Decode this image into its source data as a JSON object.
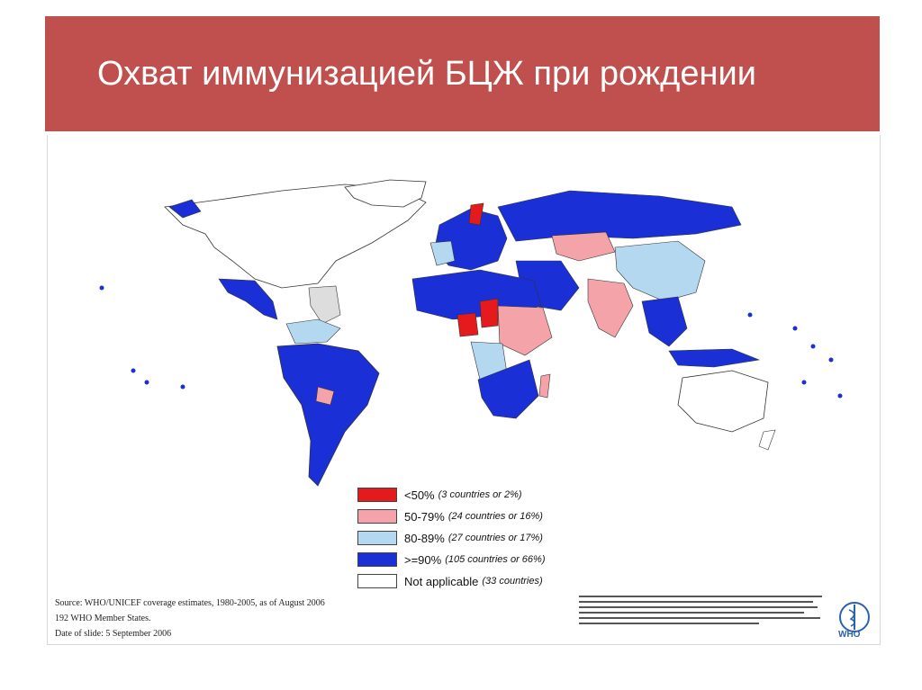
{
  "slide": {
    "title": "Охват иммунизацией БЦЖ при рождении"
  },
  "colors": {
    "title_bar": "#c0504d",
    "lt50": "#e41a1c",
    "50_79": "#f4a3a8",
    "80_89": "#b3d8f0",
    "ge90": "#1a2fd6",
    "na": "#ffffff"
  },
  "legend": [
    {
      "range": "<50%",
      "count": "(3 countries or 2%)",
      "color_key": "lt50"
    },
    {
      "range": "50-79%",
      "count": "(24 countries or 16%)",
      "color_key": "50_79"
    },
    {
      "range": "80-89%",
      "count": "(27 countries or 17%)",
      "color_key": "80_89"
    },
    {
      "range": ">=90%",
      "count": "(105 countries or 66%)",
      "color_key": "ge90"
    },
    {
      "range": "Not applicable",
      "count": "(33 countries)",
      "color_key": "na"
    }
  ],
  "source": {
    "line1": "Source: WHO/UNICEF coverage estimates, 1980-2005, as of August 2006",
    "line2": "192 WHO Member States.",
    "line3": "Date of slide: 5 September 2006"
  },
  "logo": {
    "label": "WHO",
    "icon": "who-emblem-icon"
  }
}
